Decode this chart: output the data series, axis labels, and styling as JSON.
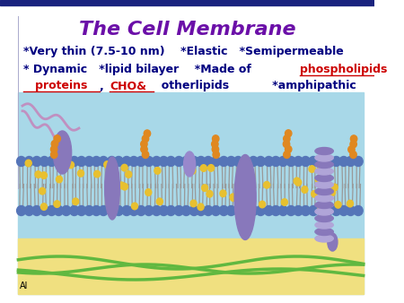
{
  "title": "The Cell Membrane",
  "title_color": "#6B0FA8",
  "title_fontsize": 16,
  "line1": "*Very thin (7.5-10 nm)    *Elastic   *Semipermeable",
  "line2_parts": [
    {
      "text": "* Dynamic   *lipid bilayer    *Made of ",
      "color": "#000080",
      "underline": false
    },
    {
      "text": "phospholipids",
      "color": "#CC0000",
      "underline": true
    },
    {
      "text": ",",
      "color": "#000080",
      "underline": false
    }
  ],
  "line3_parts": [
    {
      "text": "   proteins",
      "color": "#CC0000",
      "underline": true
    },
    {
      "text": ", ",
      "color": "#000080",
      "underline": false
    },
    {
      "text": "CHO&",
      "color": "#CC0000",
      "underline": true
    },
    {
      "text": "  otherlipids           *amphipathic",
      "color": "#000080",
      "underline": false
    }
  ],
  "text_fontsize": 9,
  "text_color": "#000080",
  "bg_color": "#FFFFFF",
  "top_bar_color": "#1A237E",
  "mem_bg_color": "#A8D8E8",
  "sand_color": "#F0E080",
  "footer_text": "Al",
  "footer_color": "#000000",
  "head_color": "#5575B8",
  "tail_color": "#999999",
  "protein_color": "#8878BB",
  "chol_color": "#E8C030",
  "glycan_color": "#E08820",
  "green_fiber": "#60B840"
}
